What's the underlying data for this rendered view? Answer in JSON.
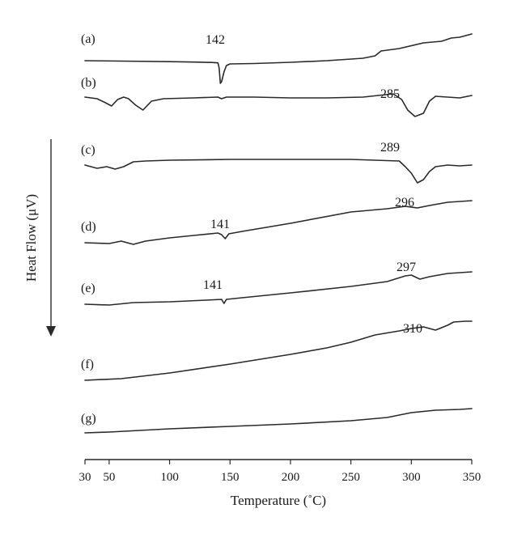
{
  "chart_data": {
    "type": "line",
    "title": "",
    "xlabel": "Temperature (˚C)",
    "ylabel": "Heat Flow (μV)",
    "xlim": [
      30,
      350
    ],
    "ylabel_arrow": "down",
    "x_ticks": [
      30,
      50,
      100,
      150,
      200,
      250,
      300,
      350
    ],
    "x_tick_labels": [
      "30",
      "50",
      "100",
      "150",
      "200",
      "250",
      "300",
      "350"
    ],
    "grid": false,
    "series": [
      {
        "name": "(a)",
        "points": [
          [
            30,
            0
          ],
          [
            60,
            0.5
          ],
          [
            100,
            1.2
          ],
          [
            120,
            1.7
          ],
          [
            135,
            2.2
          ],
          [
            140,
            2.7
          ],
          [
            141,
            9
          ],
          [
            142,
            28
          ],
          [
            143,
            26
          ],
          [
            145,
            14
          ],
          [
            147,
            6
          ],
          [
            150,
            4
          ],
          [
            170,
            3.5
          ],
          [
            200,
            2
          ],
          [
            230,
            0
          ],
          [
            260,
            -3
          ],
          [
            270,
            -6
          ],
          [
            275,
            -12
          ],
          [
            290,
            -15
          ],
          [
            310,
            -22
          ],
          [
            325,
            -24
          ],
          [
            333,
            -28
          ],
          [
            340,
            -29
          ],
          [
            350,
            -33
          ]
        ],
        "peaks": [
          {
            "x": 142,
            "label": "142"
          }
        ]
      },
      {
        "name": "(b)",
        "points": [
          [
            30,
            0
          ],
          [
            40,
            2
          ],
          [
            47,
            7
          ],
          [
            52,
            11
          ],
          [
            57,
            3
          ],
          [
            62,
            0
          ],
          [
            66,
            2
          ],
          [
            72,
            10
          ],
          [
            78,
            16
          ],
          [
            85,
            5
          ],
          [
            95,
            2
          ],
          [
            120,
            1
          ],
          [
            140,
            0
          ],
          [
            143,
            2
          ],
          [
            147,
            0
          ],
          [
            170,
            0
          ],
          [
            200,
            1
          ],
          [
            230,
            1
          ],
          [
            260,
            0
          ],
          [
            285,
            -4
          ],
          [
            292,
            3
          ],
          [
            297,
            16
          ],
          [
            303,
            24
          ],
          [
            310,
            20
          ],
          [
            315,
            5
          ],
          [
            320,
            -1
          ],
          [
            330,
            0
          ],
          [
            340,
            1
          ],
          [
            350,
            -2
          ]
        ],
        "peaks": [
          {
            "x": 285,
            "label": "285"
          }
        ]
      },
      {
        "name": "(c)",
        "points": [
          [
            30,
            0
          ],
          [
            40,
            4
          ],
          [
            48,
            2
          ],
          [
            55,
            5
          ],
          [
            62,
            2
          ],
          [
            70,
            -4
          ],
          [
            80,
            -5
          ],
          [
            100,
            -6
          ],
          [
            150,
            -7
          ],
          [
            200,
            -7
          ],
          [
            250,
            -7
          ],
          [
            290,
            -5
          ],
          [
            295,
            2
          ],
          [
            300,
            10
          ],
          [
            305,
            22
          ],
          [
            310,
            18
          ],
          [
            315,
            8
          ],
          [
            320,
            2
          ],
          [
            330,
            0
          ],
          [
            340,
            1
          ],
          [
            350,
            0
          ]
        ],
        "peaks": [
          {
            "x": 289,
            "label": "289"
          }
        ]
      },
      {
        "name": "(d)",
        "points": [
          [
            30,
            0
          ],
          [
            50,
            1
          ],
          [
            60,
            -2
          ],
          [
            70,
            2
          ],
          [
            80,
            -2
          ],
          [
            100,
            -6
          ],
          [
            120,
            -9
          ],
          [
            140,
            -12
          ],
          [
            143,
            -10
          ],
          [
            146,
            -5
          ],
          [
            149,
            -11
          ],
          [
            160,
            -14
          ],
          [
            200,
            -24
          ],
          [
            250,
            -38
          ],
          [
            280,
            -42
          ],
          [
            295,
            -45
          ],
          [
            305,
            -43
          ],
          [
            315,
            -46
          ],
          [
            330,
            -50
          ],
          [
            350,
            -52
          ]
        ],
        "peaks": [
          {
            "x": 141,
            "label": "141"
          },
          {
            "x": 296,
            "label": "296"
          }
        ]
      },
      {
        "name": "(e)",
        "points": [
          [
            30,
            0
          ],
          [
            50,
            1
          ],
          [
            70,
            -2
          ],
          [
            100,
            -3
          ],
          [
            130,
            -5
          ],
          [
            143,
            -6
          ],
          [
            145,
            -1
          ],
          [
            147,
            -6
          ],
          [
            160,
            -8
          ],
          [
            200,
            -14
          ],
          [
            250,
            -22
          ],
          [
            280,
            -28
          ],
          [
            295,
            -35
          ],
          [
            300,
            -36
          ],
          [
            307,
            -31
          ],
          [
            315,
            -34
          ],
          [
            330,
            -38
          ],
          [
            350,
            -40
          ]
        ],
        "peaks": [
          {
            "x": 141,
            "label": "141"
          },
          {
            "x": 297,
            "label": "297"
          }
        ]
      },
      {
        "name": "(f)",
        "points": [
          [
            30,
            0
          ],
          [
            60,
            -2
          ],
          [
            100,
            -9
          ],
          [
            150,
            -20
          ],
          [
            200,
            -32
          ],
          [
            230,
            -40
          ],
          [
            250,
            -47
          ],
          [
            270,
            -56
          ],
          [
            290,
            -61
          ],
          [
            300,
            -64
          ],
          [
            310,
            -66
          ],
          [
            315,
            -64
          ],
          [
            320,
            -62
          ],
          [
            325,
            -65
          ],
          [
            330,
            -68
          ],
          [
            335,
            -72
          ],
          [
            345,
            -73
          ],
          [
            350,
            -73
          ]
        ],
        "peaks": [
          {
            "x": 310,
            "label": "310"
          }
        ]
      },
      {
        "name": "(g)",
        "points": [
          [
            30,
            0
          ],
          [
            50,
            -1
          ],
          [
            100,
            -5
          ],
          [
            150,
            -8
          ],
          [
            200,
            -11
          ],
          [
            250,
            -15
          ],
          [
            280,
            -19
          ],
          [
            300,
            -25
          ],
          [
            320,
            -28
          ],
          [
            340,
            -29
          ],
          [
            350,
            -30
          ]
        ],
        "peaks": []
      }
    ]
  }
}
